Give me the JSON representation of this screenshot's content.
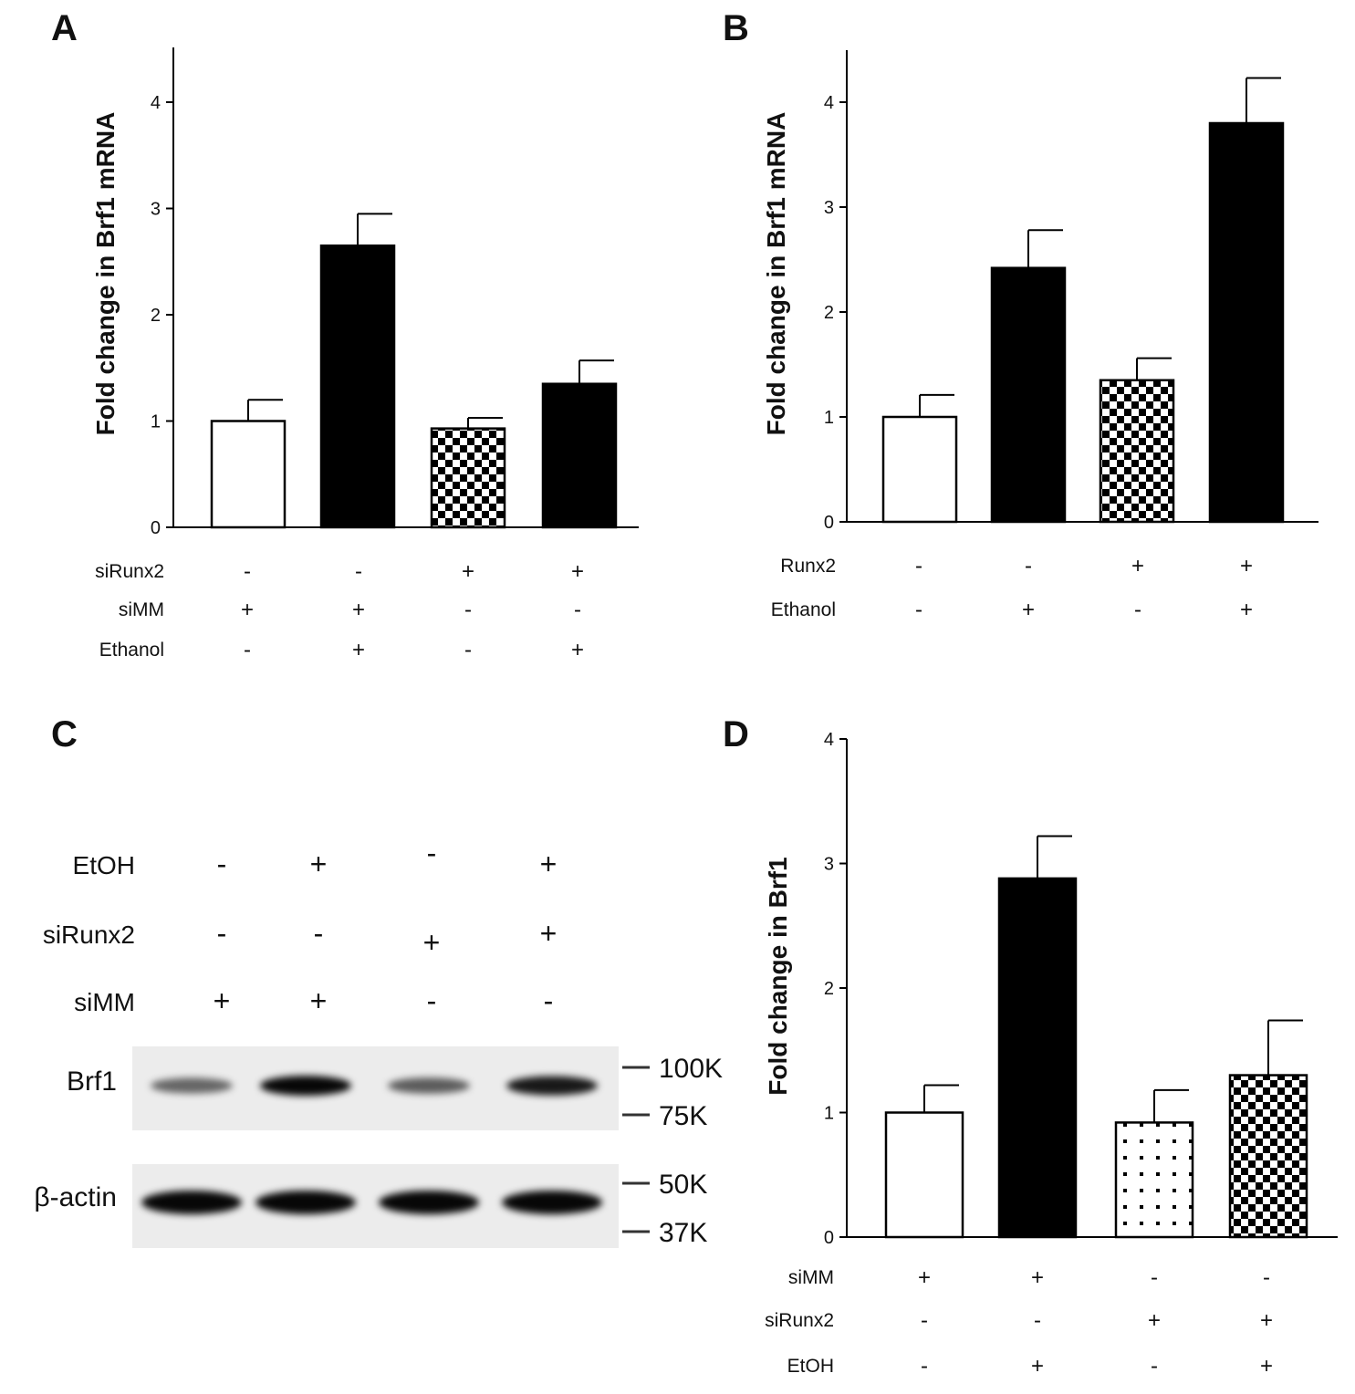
{
  "chart_data": [
    {
      "panel": "A",
      "type": "bar",
      "ylabel": "Fold change in Brf1 mRNA",
      "ylim": [
        0,
        4.5
      ],
      "yticks": [
        0,
        1,
        2,
        3,
        4
      ],
      "values": [
        1.0,
        2.65,
        0.93,
        1.35
      ],
      "errors": [
        0.2,
        0.3,
        0.1,
        0.22
      ],
      "fills": [
        "white",
        "black",
        "checker",
        "black"
      ],
      "conditions": [
        {
          "label": "siRunx2",
          "signs": [
            "-",
            "-",
            "+",
            "+"
          ]
        },
        {
          "label": "siMM",
          "signs": [
            "+",
            "+",
            "-",
            "-"
          ]
        },
        {
          "label": "Ethanol",
          "signs": [
            "-",
            "+",
            "-",
            "+"
          ]
        }
      ]
    },
    {
      "panel": "B",
      "type": "bar",
      "ylabel": "Fold change in Brf1 mRNA",
      "ylim": [
        0,
        4.5
      ],
      "yticks": [
        0,
        1,
        2,
        3,
        4
      ],
      "values": [
        1.0,
        2.42,
        1.35,
        3.8
      ],
      "errors": [
        0.21,
        0.36,
        0.21,
        0.43
      ],
      "fills": [
        "white",
        "black",
        "checker",
        "black"
      ],
      "conditions": [
        {
          "label": "Runx2",
          "signs": [
            "-",
            "-",
            "+",
            "+"
          ]
        },
        {
          "label": "Ethanol",
          "signs": [
            "-",
            "+",
            "-",
            "+"
          ]
        }
      ]
    },
    {
      "panel": "D",
      "type": "bar",
      "ylabel": "Fold change in Brf1",
      "ylim": [
        0,
        4
      ],
      "yticks": [
        0,
        1,
        2,
        3,
        4
      ],
      "values": [
        1.0,
        2.88,
        0.92,
        1.3
      ],
      "errors": [
        0.22,
        0.34,
        0.26,
        0.44
      ],
      "fills": [
        "white",
        "black",
        "dots",
        "checker"
      ],
      "conditions": [
        {
          "label": "siMM",
          "signs": [
            "+",
            "+",
            "-",
            "-"
          ]
        },
        {
          "label": "siRunx2",
          "signs": [
            "-",
            "-",
            "+",
            "+"
          ]
        },
        {
          "label": "EtOH",
          "signs": [
            "-",
            "+",
            "-",
            "+"
          ]
        }
      ]
    }
  ],
  "blot": {
    "panel": "C",
    "conditions": [
      {
        "label": "EtOH",
        "signs": [
          "-",
          "+",
          "-",
          "+"
        ]
      },
      {
        "label": "siRunx2",
        "signs": [
          "-",
          "-",
          "+",
          "+"
        ]
      },
      {
        "label": "siMM",
        "signs": [
          "+",
          "+",
          "-",
          "-"
        ]
      }
    ],
    "rows": [
      {
        "label": "Brf1",
        "intensity": [
          0.45,
          1.0,
          0.5,
          0.9
        ],
        "markers": [
          "100K",
          "75K"
        ]
      },
      {
        "label": "β-actin",
        "intensity": [
          1.0,
          1.0,
          1.0,
          1.0
        ],
        "markers": [
          "50K",
          "37K"
        ]
      }
    ]
  }
}
